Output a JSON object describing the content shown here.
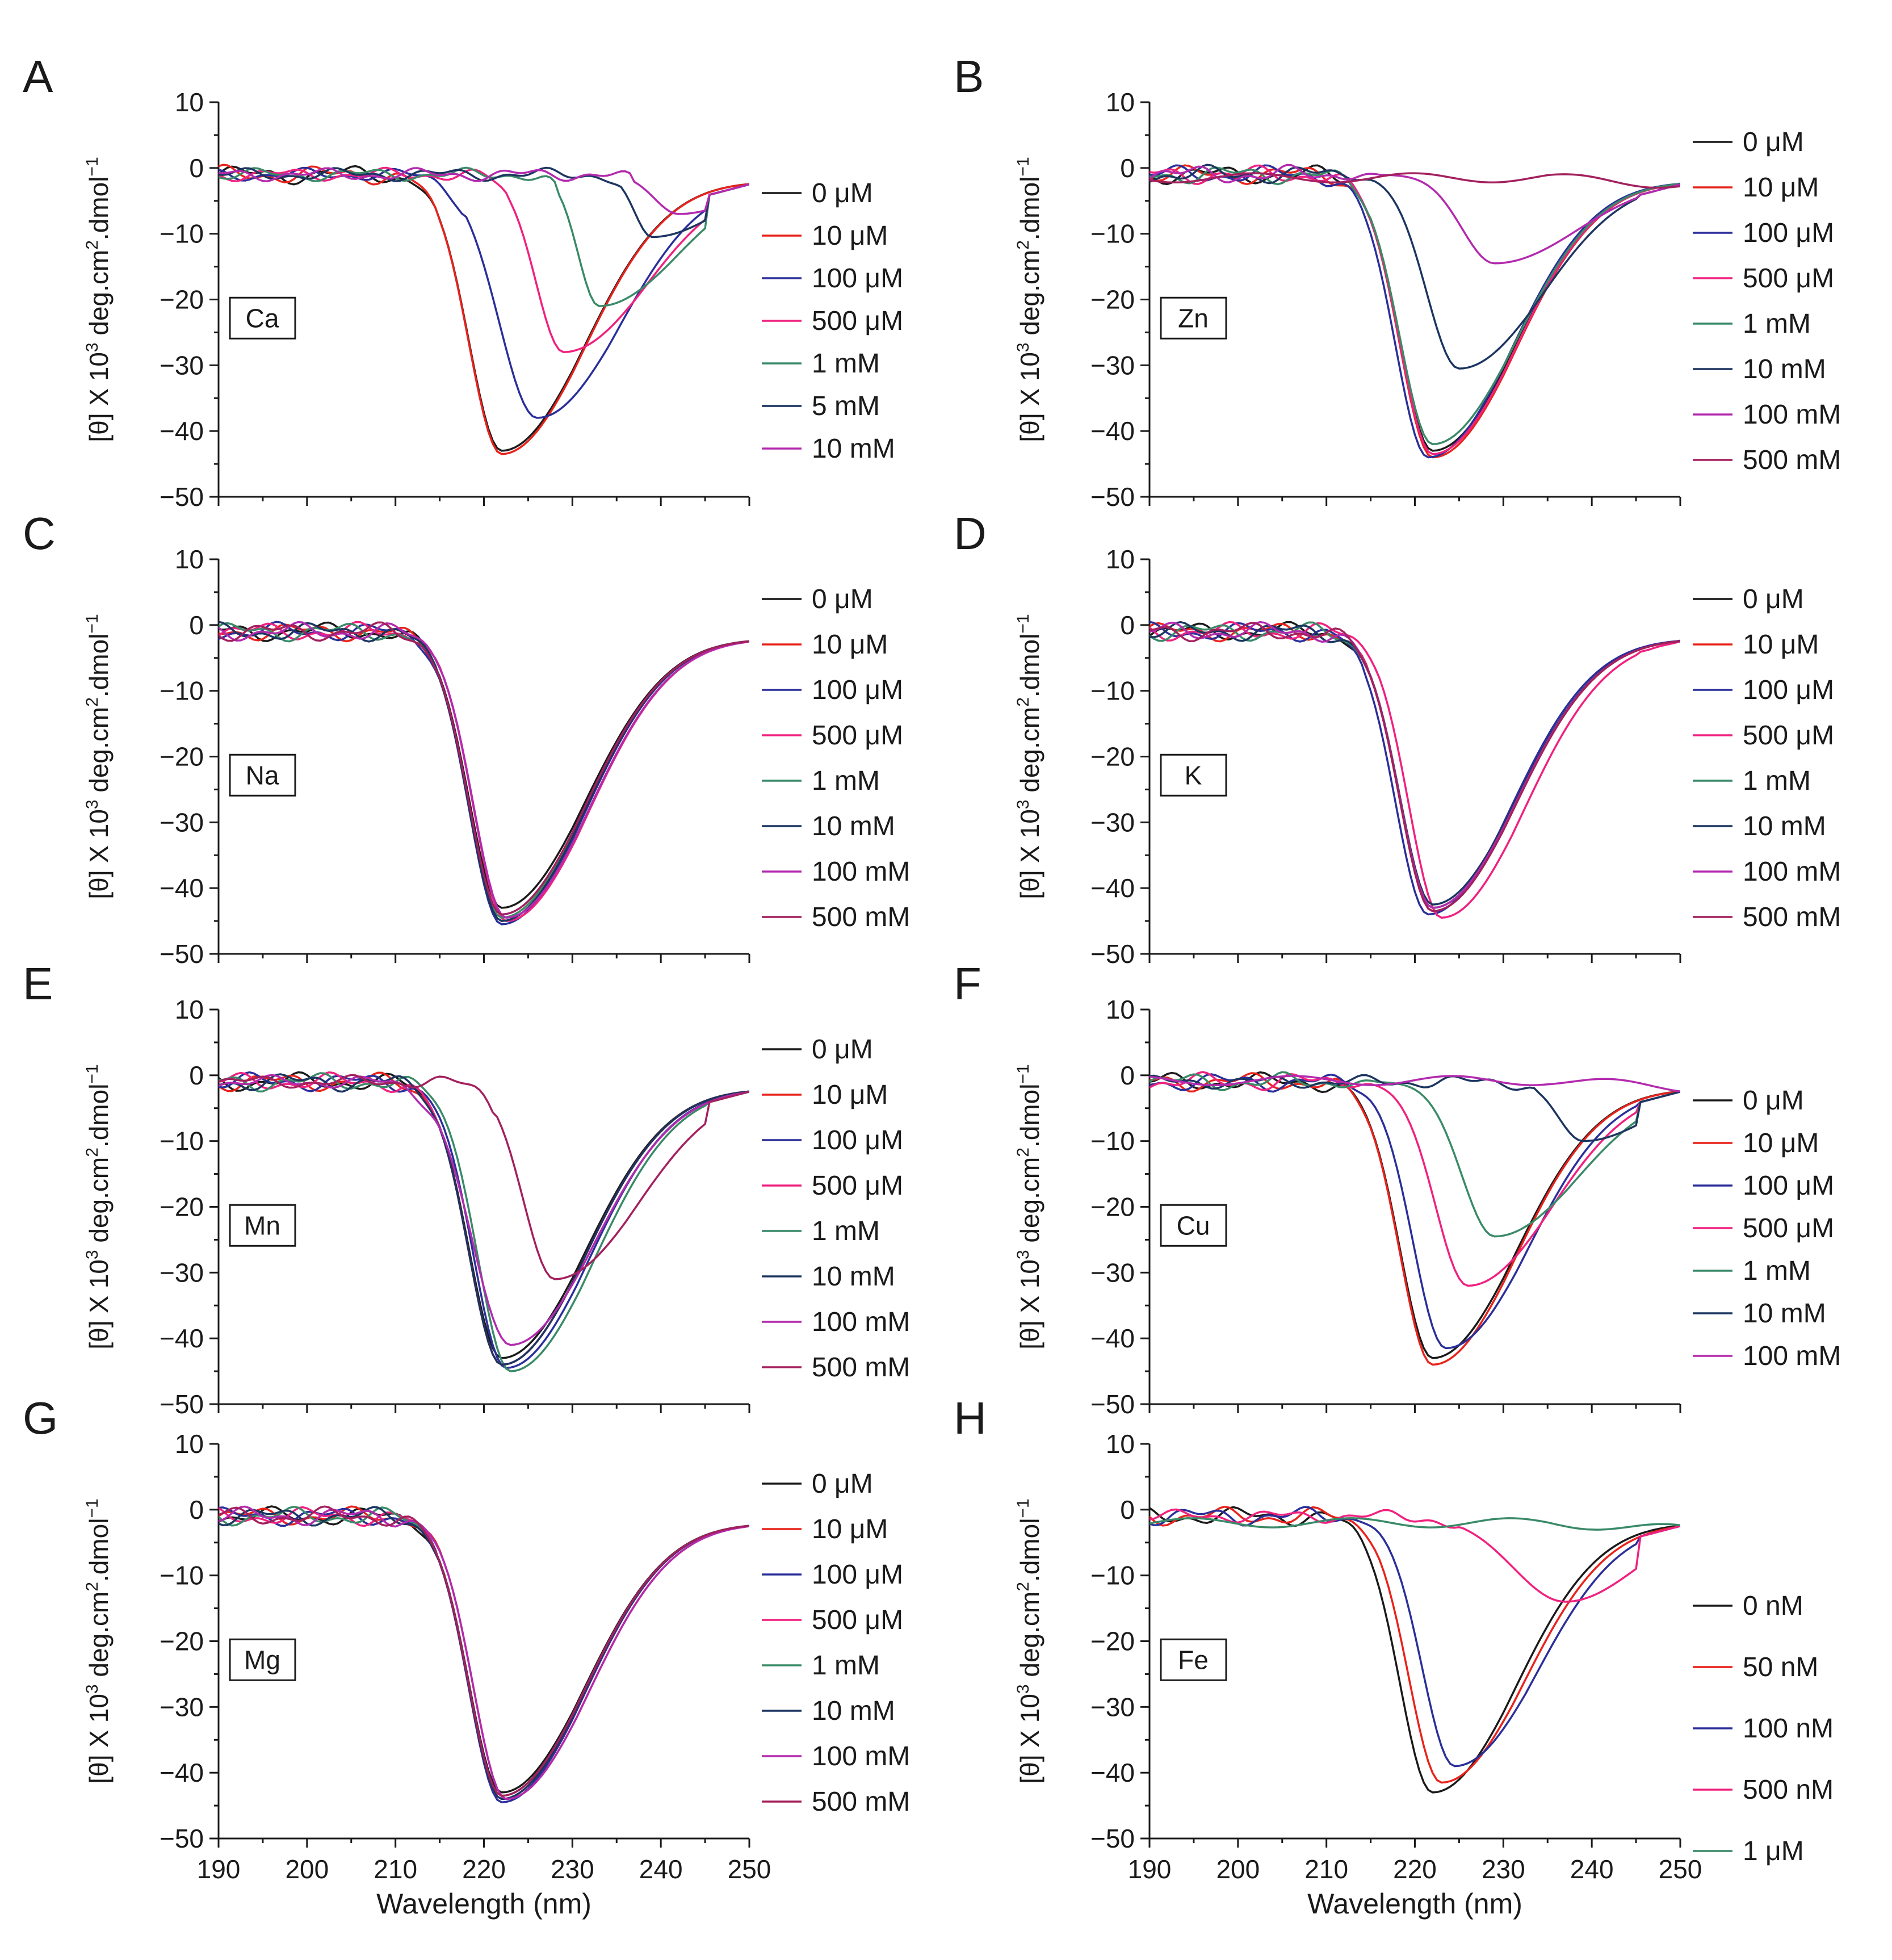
{
  "figure": {
    "panels": [
      "A",
      "B",
      "C",
      "D",
      "E",
      "F",
      "G",
      "H"
    ],
    "ylabel": "[θ] X 10³ deg.cm².dmol⁻¹",
    "ylabel_parts": [
      "[θ] X 10",
      "3",
      " deg.cm",
      "2",
      ".dmol",
      "−1"
    ],
    "xlabel": "Wavelength (nm)"
  },
  "colors": {
    "black": "#1a1a1a",
    "red": "#e8231c",
    "blue": "#2a2f9a",
    "pink": "#f0217f",
    "green": "#3a8a68",
    "navy": "#1c3560",
    "magenta": "#b32aae",
    "maroon": "#a3205e"
  },
  "chart_data": [
    {
      "panel": "A",
      "type": "line",
      "inset_label": "Ca",
      "xlim": [
        190,
        250
      ],
      "ylim": [
        -50,
        10
      ],
      "xticks": [
        "190",
        "200",
        "210",
        "220",
        "230",
        "240",
        "250"
      ],
      "yticks": [
        "10",
        "0",
        "−10",
        "−20",
        "−30",
        "−40",
        "−50"
      ],
      "show_xaxis_labels": false,
      "series": [
        {
          "name": "0 μM",
          "color": "#1a1a1a",
          "shape": {
            "type": "trough",
            "center": 222,
            "depth": -42,
            "onset": 210
          }
        },
        {
          "name": "10 μM",
          "color": "#e8231c",
          "shape": {
            "type": "trough",
            "center": 222,
            "depth": -42.5,
            "onset": 210
          }
        },
        {
          "name": "100 μM",
          "color": "#2a2f9a",
          "shape": {
            "type": "shifted",
            "center": 226,
            "depth": -37,
            "onset": 215
          }
        },
        {
          "name": "500 μM",
          "color": "#f0217f",
          "shape": {
            "type": "shifted",
            "center": 229,
            "depth": -27,
            "onset": 221
          }
        },
        {
          "name": "1 mM",
          "color": "#3a8a68",
          "shape": {
            "type": "shifted",
            "center": 233,
            "depth": -20,
            "onset": 227
          }
        },
        {
          "name": "5 mM",
          "color": "#1c3560",
          "shape": {
            "type": "shifted",
            "center": 239,
            "depth": -9.5,
            "onset": 234
          }
        },
        {
          "name": "10 mM",
          "color": "#b32aae",
          "shape": {
            "type": "shifted",
            "center": 242,
            "depth": -6,
            "onset": 235
          }
        }
      ]
    },
    {
      "panel": "B",
      "type": "line",
      "inset_label": "Zn",
      "xlim": [
        190,
        250
      ],
      "ylim": [
        -50,
        10
      ],
      "xticks": [
        "190",
        "200",
        "210",
        "220",
        "230",
        "240",
        "250"
      ],
      "yticks": [
        "10",
        "0",
        "−10",
        "−20",
        "−30",
        "−40",
        "−50"
      ],
      "show_xaxis_labels": false,
      "series": [
        {
          "name": "0 μM",
          "color": "#1a1a1a",
          "shape": {
            "type": "trough",
            "center": 222,
            "depth": -42,
            "onset": 210
          }
        },
        {
          "name": "10 μM",
          "color": "#e8231c",
          "shape": {
            "type": "trough",
            "center": 222,
            "depth": -43,
            "onset": 210
          }
        },
        {
          "name": "100 μM",
          "color": "#2a2f9a",
          "shape": {
            "type": "trough",
            "center": 221.5,
            "depth": -43,
            "onset": 210
          }
        },
        {
          "name": "500 μM",
          "color": "#f0217f",
          "shape": {
            "type": "trough",
            "center": 222,
            "depth": -42.5,
            "onset": 210
          }
        },
        {
          "name": "1 mM",
          "color": "#3a8a68",
          "shape": {
            "type": "trough",
            "center": 222,
            "depth": -41,
            "onset": 210
          }
        },
        {
          "name": "10 mM",
          "color": "#1c3560",
          "shape": {
            "type": "trough",
            "center": 225,
            "depth": -29.5,
            "onset": 211
          }
        },
        {
          "name": "100 mM",
          "color": "#b32aae",
          "shape": {
            "type": "trough",
            "center": 229,
            "depth": -13.5,
            "onset": 212
          }
        },
        {
          "name": "500 mM",
          "color": "#a3205e",
          "shape": {
            "type": "flat",
            "level": -1.5
          }
        }
      ]
    },
    {
      "panel": "C",
      "type": "line",
      "inset_label": "Na",
      "xlim": [
        190,
        250
      ],
      "ylim": [
        -50,
        10
      ],
      "xticks": [
        "190",
        "200",
        "210",
        "220",
        "230",
        "240",
        "250"
      ],
      "yticks": [
        "10",
        "0",
        "−10",
        "−20",
        "−30",
        "−40",
        "−50"
      ],
      "show_xaxis_labels": false,
      "series": [
        {
          "name": "0 μM",
          "color": "#1a1a1a",
          "shape": {
            "type": "trough",
            "center": 222,
            "depth": -42,
            "onset": 210
          }
        },
        {
          "name": "10 μM",
          "color": "#e8231c",
          "shape": {
            "type": "trough",
            "center": 222,
            "depth": -44,
            "onset": 210
          }
        },
        {
          "name": "100 μM",
          "color": "#2a2f9a",
          "shape": {
            "type": "trough",
            "center": 222,
            "depth": -44.5,
            "onset": 210
          }
        },
        {
          "name": "500 μM",
          "color": "#f0217f",
          "shape": {
            "type": "trough",
            "center": 222.5,
            "depth": -44,
            "onset": 210
          }
        },
        {
          "name": "1 mM",
          "color": "#3a8a68",
          "shape": {
            "type": "trough",
            "center": 222,
            "depth": -43.5,
            "onset": 210
          }
        },
        {
          "name": "10 mM",
          "color": "#1c3560",
          "shape": {
            "type": "trough",
            "center": 222,
            "depth": -44,
            "onset": 210
          }
        },
        {
          "name": "100 mM",
          "color": "#b32aae",
          "shape": {
            "type": "trough",
            "center": 222.5,
            "depth": -43.5,
            "onset": 210
          }
        },
        {
          "name": "500 mM",
          "color": "#a3205e",
          "shape": {
            "type": "trough",
            "center": 222,
            "depth": -43,
            "onset": 210
          }
        }
      ]
    },
    {
      "panel": "D",
      "type": "line",
      "inset_label": "K",
      "xlim": [
        190,
        250
      ],
      "ylim": [
        -50,
        10
      ],
      "xticks": [
        "190",
        "200",
        "210",
        "220",
        "230",
        "240",
        "250"
      ],
      "yticks": [
        "10",
        "0",
        "−10",
        "−20",
        "−30",
        "−40",
        "−50"
      ],
      "show_xaxis_labels": false,
      "series": [
        {
          "name": "0 μM",
          "color": "#1a1a1a",
          "shape": {
            "type": "trough",
            "center": 222,
            "depth": -42,
            "onset": 210
          }
        },
        {
          "name": "10 μM",
          "color": "#e8231c",
          "shape": {
            "type": "trough",
            "center": 222,
            "depth": -42.5,
            "onset": 210
          }
        },
        {
          "name": "100 μM",
          "color": "#2a2f9a",
          "shape": {
            "type": "trough",
            "center": 221.5,
            "depth": -43,
            "onset": 210
          }
        },
        {
          "name": "500 μM",
          "color": "#f0217f",
          "shape": {
            "type": "trough",
            "center": 223,
            "depth": -43.5,
            "onset": 210
          }
        },
        {
          "name": "1 mM",
          "color": "#3a8a68",
          "shape": {
            "type": "trough",
            "center": 222,
            "depth": -42,
            "onset": 210
          }
        },
        {
          "name": "10 mM",
          "color": "#1c3560",
          "shape": {
            "type": "trough",
            "center": 222,
            "depth": -41.5,
            "onset": 210
          }
        },
        {
          "name": "100 mM",
          "color": "#b32aae",
          "shape": {
            "type": "trough",
            "center": 222,
            "depth": -42,
            "onset": 210
          }
        },
        {
          "name": "500 mM",
          "color": "#a3205e",
          "shape": {
            "type": "trough",
            "center": 222,
            "depth": -42.5,
            "onset": 210
          }
        }
      ]
    },
    {
      "panel": "E",
      "type": "line",
      "inset_label": "Mn",
      "xlim": [
        190,
        250
      ],
      "ylim": [
        -50,
        10
      ],
      "xticks": [
        "190",
        "200",
        "210",
        "220",
        "230",
        "240",
        "250"
      ],
      "yticks": [
        "10",
        "0",
        "−10",
        "−20",
        "−30",
        "−40",
        "−50"
      ],
      "show_xaxis_labels": false,
      "series": [
        {
          "name": "0 μM",
          "color": "#1a1a1a",
          "shape": {
            "type": "trough",
            "center": 222,
            "depth": -42,
            "onset": 210
          }
        },
        {
          "name": "10 μM",
          "color": "#e8231c",
          "shape": {
            "type": "trough",
            "center": 222,
            "depth": -43,
            "onset": 210
          }
        },
        {
          "name": "100 μM",
          "color": "#2a2f9a",
          "shape": {
            "type": "trough",
            "center": 222.5,
            "depth": -43.5,
            "onset": 210
          }
        },
        {
          "name": "500 μM",
          "color": "#f0217f",
          "shape": {
            "type": "trough",
            "center": 222,
            "depth": -43,
            "onset": 210
          }
        },
        {
          "name": "1 mM",
          "color": "#3a8a68",
          "shape": {
            "type": "trough",
            "center": 223,
            "depth": -44,
            "onset": 210
          }
        },
        {
          "name": "10 mM",
          "color": "#1c3560",
          "shape": {
            "type": "trough",
            "center": 222,
            "depth": -43,
            "onset": 210
          }
        },
        {
          "name": "100 mM",
          "color": "#b32aae",
          "shape": {
            "type": "shifted",
            "center": 223,
            "depth": -40,
            "onset": 212
          }
        },
        {
          "name": "500 mM",
          "color": "#a3205e",
          "shape": {
            "type": "shifted",
            "center": 228,
            "depth": -30,
            "onset": 219
          }
        }
      ]
    },
    {
      "panel": "F",
      "type": "line",
      "inset_label": "Cu",
      "xlim": [
        190,
        250
      ],
      "ylim": [
        -50,
        10
      ],
      "xticks": [
        "190",
        "200",
        "210",
        "220",
        "230",
        "240",
        "250"
      ],
      "yticks": [
        "10",
        "0",
        "−10",
        "−20",
        "−30",
        "−40",
        "−50"
      ],
      "show_xaxis_labels": false,
      "series": [
        {
          "name": "0 μM",
          "color": "#1a1a1a",
          "shape": {
            "type": "trough",
            "center": 222,
            "depth": -42,
            "onset": 210
          }
        },
        {
          "name": "10 μM",
          "color": "#e8231c",
          "shape": {
            "type": "trough",
            "center": 222,
            "depth": -43,
            "onset": 210
          }
        },
        {
          "name": "100 μM",
          "color": "#2a2f9a",
          "shape": {
            "type": "trough",
            "center": 223.5,
            "depth": -40.5,
            "onset": 211
          }
        },
        {
          "name": "500 μM",
          "color": "#f0217f",
          "shape": {
            "type": "trough",
            "center": 226,
            "depth": -31,
            "onset": 212
          }
        },
        {
          "name": "1 mM",
          "color": "#3a8a68",
          "shape": {
            "type": "trough",
            "center": 229,
            "depth": -23.5,
            "onset": 214
          }
        },
        {
          "name": "10 mM",
          "color": "#1c3560",
          "shape": {
            "type": "shifted",
            "center": 239,
            "depth": -9,
            "onset": 232
          }
        },
        {
          "name": "100 mM",
          "color": "#b32aae",
          "shape": {
            "type": "flat",
            "level": -0.8
          }
        }
      ]
    },
    {
      "panel": "G",
      "type": "line",
      "inset_label": "Mg",
      "xlim": [
        190,
        250
      ],
      "ylim": [
        -50,
        10
      ],
      "xticks": [
        "190",
        "200",
        "210",
        "220",
        "230",
        "240",
        "250"
      ],
      "yticks": [
        "10",
        "0",
        "−10",
        "−20",
        "−30",
        "−40",
        "−50"
      ],
      "show_xaxis_labels": true,
      "series": [
        {
          "name": "0 μM",
          "color": "#1a1a1a",
          "shape": {
            "type": "trough",
            "center": 222,
            "depth": -42,
            "onset": 210
          }
        },
        {
          "name": "10 μM",
          "color": "#e8231c",
          "shape": {
            "type": "trough",
            "center": 222.5,
            "depth": -43,
            "onset": 210
          }
        },
        {
          "name": "100 μM",
          "color": "#2a2f9a",
          "shape": {
            "type": "trough",
            "center": 222,
            "depth": -43.5,
            "onset": 210
          }
        },
        {
          "name": "500 μM",
          "color": "#f0217f",
          "shape": {
            "type": "trough",
            "center": 222,
            "depth": -43,
            "onset": 210
          }
        },
        {
          "name": "1 mM",
          "color": "#3a8a68",
          "shape": {
            "type": "trough",
            "center": 222,
            "depth": -42.5,
            "onset": 210
          }
        },
        {
          "name": "10 mM",
          "color": "#1c3560",
          "shape": {
            "type": "trough",
            "center": 222,
            "depth": -43,
            "onset": 210
          }
        },
        {
          "name": "100 mM",
          "color": "#b32aae",
          "shape": {
            "type": "trough",
            "center": 222.5,
            "depth": -43,
            "onset": 210
          }
        },
        {
          "name": "500 mM",
          "color": "#a3205e",
          "shape": {
            "type": "trough",
            "center": 222,
            "depth": -42.5,
            "onset": 210
          }
        }
      ]
    },
    {
      "panel": "H",
      "type": "line",
      "inset_label": "Fe",
      "xlim": [
        190,
        250
      ],
      "ylim": [
        -50,
        10
      ],
      "xticks": [
        "190",
        "200",
        "210",
        "220",
        "230",
        "240",
        "250"
      ],
      "yticks": [
        "10",
        "0",
        "−10",
        "−20",
        "−30",
        "−40",
        "−50"
      ],
      "show_xaxis_labels": true,
      "series": [
        {
          "name": "0 nM",
          "color": "#1a1a1a",
          "shape": {
            "type": "trough",
            "center": 222,
            "depth": -42,
            "onset": 210
          }
        },
        {
          "name": "50 nM",
          "color": "#e8231c",
          "shape": {
            "type": "trough",
            "center": 223,
            "depth": -40.5,
            "onset": 210
          }
        },
        {
          "name": "100 nM",
          "color": "#2a2f9a",
          "shape": {
            "type": "trough",
            "center": 224.5,
            "depth": -38,
            "onset": 211
          }
        },
        {
          "name": "500 nM",
          "color": "#f0217f",
          "shape": {
            "type": "shifted",
            "center": 237,
            "depth": -13,
            "onset": 222
          }
        },
        {
          "name": "1 μM",
          "color": "#3a8a68",
          "shape": {
            "type": "flat",
            "level": -2
          }
        }
      ]
    }
  ]
}
